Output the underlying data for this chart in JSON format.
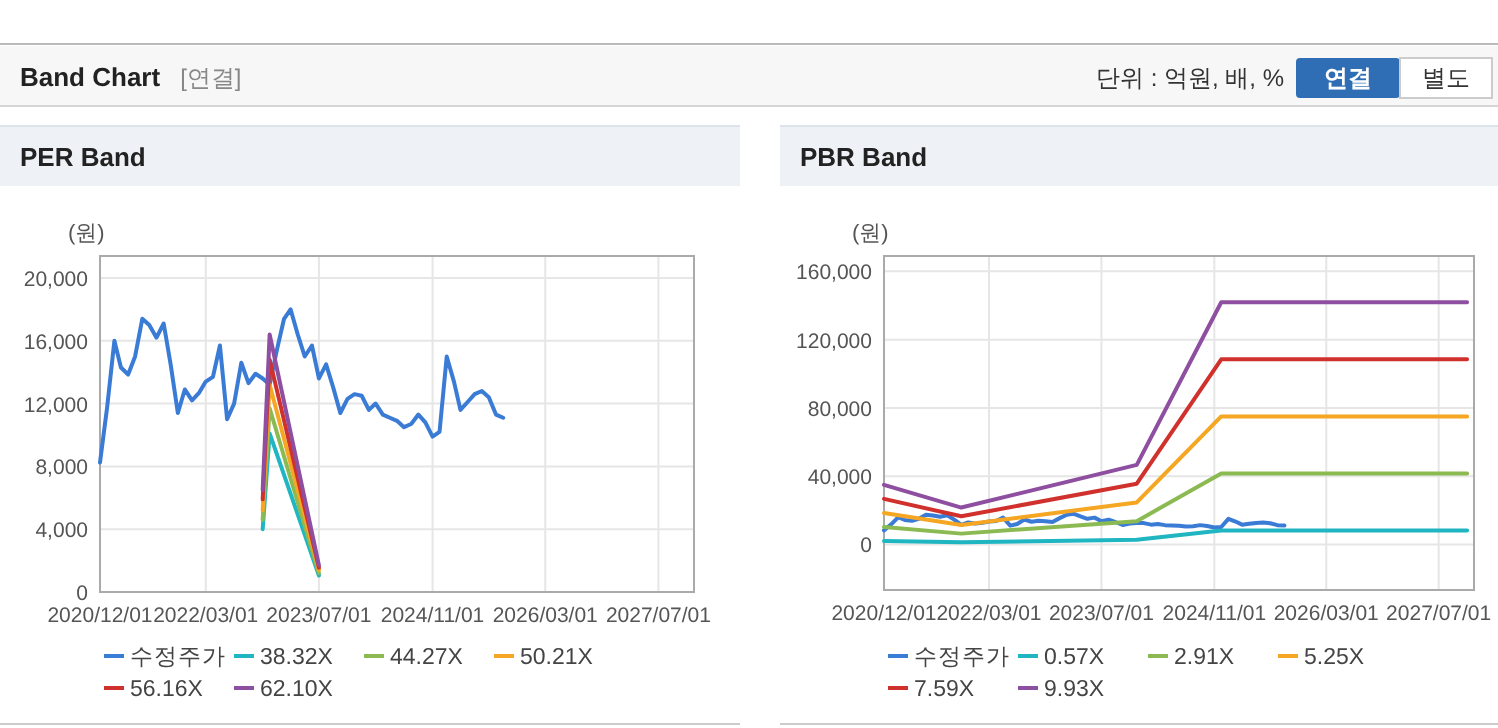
{
  "chart_data": [
    {
      "type": "other",
      "title": "Band Chart",
      "annotations": [
        "[연결]",
        "단위 : 억원, 배, %",
        "연결",
        "별도"
      ]
    },
    {
      "type": "line",
      "title": "PER Band",
      "ylabel": "(원)",
      "grid": true,
      "legend": "bottom",
      "line_style": "solid",
      "marker": "none",
      "xlim": [
        "2020-12-01",
        "2027-12-01"
      ],
      "xticks": [
        {
          "value": "2020-12-01",
          "label": "2020/12/01"
        },
        {
          "value": "2022-03-01",
          "label": "2022/03/01"
        },
        {
          "value": "2023-07-01",
          "label": "2023/07/01"
        },
        {
          "value": "2024-11-01",
          "label": "2024/11/01"
        },
        {
          "value": "2026-03-01",
          "label": "2026/03/01"
        },
        {
          "value": "2027-07-01",
          "label": "2027/07/01"
        }
      ],
      "ylim": [
        0,
        21400
      ],
      "yticks": [
        {
          "value": 0,
          "label": "0"
        },
        {
          "value": 4000,
          "label": "4,000"
        },
        {
          "value": 8000,
          "label": "8,000"
        },
        {
          "value": 12000,
          "label": "12,000"
        },
        {
          "value": 16000,
          "label": "16,000"
        },
        {
          "value": 20000,
          "label": "20,000"
        }
      ],
      "series": [
        {
          "name": "수정주가",
          "color": "#3a7bd5",
          "x": [
            "2020-12",
            "2021-01",
            "2021-02",
            "2021-03",
            "2021-04",
            "2021-05",
            "2021-06",
            "2021-07",
            "2021-08",
            "2021-09",
            "2021-10",
            "2021-11",
            "2021-12",
            "2022-01",
            "2022-02",
            "2022-03",
            "2022-04",
            "2022-05",
            "2022-06",
            "2022-07",
            "2022-08",
            "2022-09",
            "2022-10",
            "2022-11",
            "2022-12",
            "2023-01",
            "2023-02",
            "2023-03",
            "2023-04",
            "2023-05",
            "2023-06",
            "2023-07",
            "2023-08",
            "2023-09",
            "2023-10",
            "2023-11",
            "2023-12",
            "2024-01",
            "2024-02",
            "2024-03",
            "2024-04",
            "2024-05",
            "2024-06",
            "2024-07",
            "2024-08",
            "2024-09",
            "2024-10",
            "2024-11",
            "2024-12",
            "2025-01",
            "2025-02",
            "2025-03",
            "2025-04",
            "2025-05",
            "2025-06",
            "2025-07",
            "2025-08",
            "2025-09"
          ],
          "values": [
            8250,
            11800,
            16000,
            14300,
            13850,
            15000,
            17400,
            17000,
            16200,
            17100,
            14500,
            11400,
            12900,
            12200,
            12700,
            13400,
            13700,
            15700,
            11000,
            12000,
            14600,
            13300,
            13900,
            13600,
            13200,
            15400,
            17400,
            18000,
            16400,
            15000,
            15700,
            13600,
            14500,
            13000,
            11400,
            12300,
            12600,
            12500,
            11600,
            12000,
            11300,
            11100,
            10900,
            10500,
            10700,
            11300,
            10800,
            9900,
            10200,
            15000,
            13400,
            11600,
            12100,
            12600,
            12800,
            12400,
            11300,
            11100
          ]
        },
        {
          "name": "38.32X",
          "color": "#1fb5c1",
          "x": [
            "2022-11",
            "2022-12",
            "2023-07"
          ],
          "values": [
            4000,
            10100,
            1050
          ]
        },
        {
          "name": "44.27X",
          "color": "#8cba52",
          "x": [
            "2022-11",
            "2022-12",
            "2023-07"
          ],
          "values": [
            4600,
            11700,
            1200
          ]
        },
        {
          "name": "50.21X",
          "color": "#f5a623",
          "x": [
            "2022-11",
            "2022-12",
            "2023-07"
          ],
          "values": [
            5200,
            13200,
            1400
          ]
        },
        {
          "name": "56.16X",
          "color": "#d0312d",
          "x": [
            "2022-11",
            "2022-12",
            "2023-07"
          ],
          "values": [
            5900,
            14800,
            1550
          ]
        },
        {
          "name": "62.10X",
          "color": "#8e4fa0",
          "x": [
            "2022-11",
            "2022-12",
            "2023-07"
          ],
          "values": [
            6500,
            16400,
            1700
          ]
        }
      ]
    },
    {
      "type": "line",
      "title": "PBR Band",
      "ylabel": "(원)",
      "grid": true,
      "legend": "bottom",
      "line_style": "solid",
      "marker": "none",
      "xlim": [
        "2020-12-01",
        "2027-12-01"
      ],
      "xticks": [
        {
          "value": "2020-12-01",
          "label": "2020/12/01"
        },
        {
          "value": "2022-03-01",
          "label": "2022/03/01"
        },
        {
          "value": "2023-07-01",
          "label": "2023/07/01"
        },
        {
          "value": "2024-11-01",
          "label": "2024/11/01"
        },
        {
          "value": "2026-03-01",
          "label": "2026/03/01"
        },
        {
          "value": "2027-07-01",
          "label": "2027/07/01"
        }
      ],
      "ylim": [
        -26700,
        169000
      ],
      "yticks": [
        {
          "value": 0,
          "label": "0"
        },
        {
          "value": 40000,
          "label": "40,000"
        },
        {
          "value": 80000,
          "label": "80,000"
        },
        {
          "value": 120000,
          "label": "120,000"
        },
        {
          "value": 160000,
          "label": "160,000"
        }
      ],
      "series": [
        {
          "name": "수정주가",
          "color": "#3a7bd5",
          "x": [
            "2020-12",
            "2021-01",
            "2021-02",
            "2021-03",
            "2021-04",
            "2021-05",
            "2021-06",
            "2021-07",
            "2021-08",
            "2021-09",
            "2021-10",
            "2021-11",
            "2021-12",
            "2022-01",
            "2022-02",
            "2022-03",
            "2022-04",
            "2022-05",
            "2022-06",
            "2022-07",
            "2022-08",
            "2022-09",
            "2022-10",
            "2022-11",
            "2022-12",
            "2023-01",
            "2023-02",
            "2023-03",
            "2023-04",
            "2023-05",
            "2023-06",
            "2023-07",
            "2023-08",
            "2023-09",
            "2023-10",
            "2023-11",
            "2023-12",
            "2024-01",
            "2024-02",
            "2024-03",
            "2024-04",
            "2024-05",
            "2024-06",
            "2024-07",
            "2024-08",
            "2024-09",
            "2024-10",
            "2024-11",
            "2024-12",
            "2025-01",
            "2025-02",
            "2025-03",
            "2025-04",
            "2025-05",
            "2025-06",
            "2025-07",
            "2025-08",
            "2025-09"
          ],
          "values": [
            8250,
            11800,
            16000,
            14300,
            13850,
            15000,
            17400,
            17000,
            16200,
            17100,
            14500,
            11400,
            12900,
            12200,
            12700,
            13400,
            13700,
            15700,
            11000,
            12000,
            14600,
            13300,
            13900,
            13600,
            13200,
            15400,
            17400,
            18000,
            16400,
            15000,
            15700,
            13600,
            14500,
            13000,
            11400,
            12300,
            12600,
            12500,
            11600,
            12000,
            11300,
            11100,
            10900,
            10500,
            10700,
            11300,
            10800,
            9900,
            10200,
            15000,
            13400,
            11600,
            12100,
            12600,
            12800,
            12400,
            11300,
            11100
          ]
        },
        {
          "name": "0.57X",
          "color": "#1fb5c1",
          "x": [
            "2020-12",
            "2021-11",
            "2023-12",
            "2024-12",
            "2027-11"
          ],
          "values": [
            2000,
            1240,
            2680,
            8150,
            8150
          ]
        },
        {
          "name": "2.91X",
          "color": "#8cba52",
          "x": [
            "2020-12",
            "2021-11",
            "2023-12",
            "2024-12",
            "2027-11"
          ],
          "values": [
            10200,
            6330,
            13650,
            41600,
            41600
          ]
        },
        {
          "name": "5.25X",
          "color": "#f5a623",
          "x": [
            "2020-12",
            "2021-11",
            "2023-12",
            "2024-12",
            "2027-11"
          ],
          "values": [
            18450,
            11400,
            24600,
            75000,
            75000
          ]
        },
        {
          "name": "7.59X",
          "color": "#d0312d",
          "x": [
            "2020-12",
            "2021-11",
            "2023-12",
            "2024-12",
            "2027-11"
          ],
          "values": [
            26700,
            16500,
            35600,
            108500,
            108500
          ]
        },
        {
          "name": "9.93X",
          "color": "#8e4fa0",
          "x": [
            "2020-12",
            "2021-11",
            "2023-12",
            "2024-12",
            "2027-11"
          ],
          "values": [
            34900,
            21600,
            46600,
            141900,
            141900
          ]
        }
      ]
    }
  ]
}
